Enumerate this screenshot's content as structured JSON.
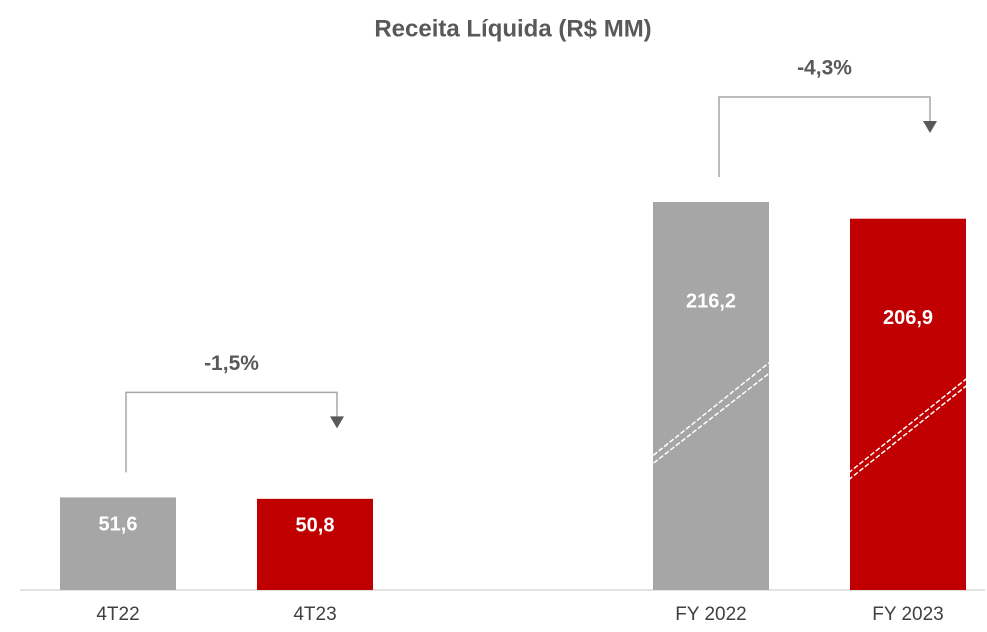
{
  "chart_data": {
    "type": "bar",
    "title": "Receita Líquida (R$ MM)",
    "categories": [
      "4T22",
      "4T23",
      "FY 2022",
      "FY 2023"
    ],
    "values": [
      51.6,
      50.8,
      216.2,
      206.9
    ],
    "value_labels": [
      "51,6",
      "50,8",
      "216,2",
      "206,9"
    ],
    "colors": [
      "#a6a6a6",
      "#c00000",
      "#a6a6a6",
      "#c00000"
    ],
    "annotations": [
      "-1,5%",
      "-4,3%"
    ]
  }
}
